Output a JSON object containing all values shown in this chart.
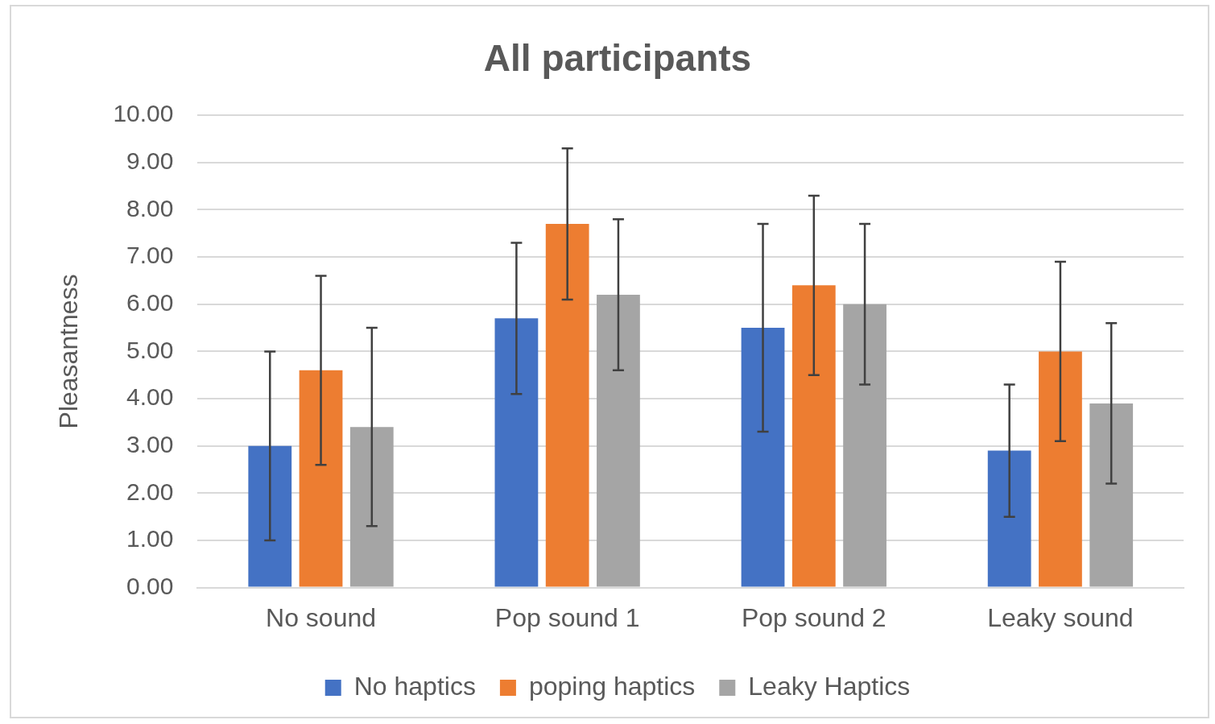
{
  "chart_data": {
    "type": "bar",
    "title": "All participants",
    "ylabel": "Pleasantness",
    "categories": [
      "No sound",
      "Pop sound 1",
      "Pop sound 2",
      "Leaky sound"
    ],
    "series": [
      {
        "name": "No haptics",
        "color": "#4472c4",
        "values": [
          3.0,
          5.7,
          5.5,
          2.9
        ],
        "errors": [
          2.0,
          1.6,
          2.2,
          1.4
        ]
      },
      {
        "name": "poping haptics",
        "color": "#ed7d31",
        "values": [
          4.6,
          7.7,
          6.4,
          5.0
        ],
        "errors": [
          2.0,
          1.6,
          1.9,
          1.9
        ]
      },
      {
        "name": "Leaky Haptics",
        "color": "#a5a5a5",
        "values": [
          3.4,
          6.2,
          6.0,
          3.9
        ],
        "errors": [
          2.1,
          1.6,
          1.7,
          1.7
        ]
      }
    ],
    "ylim": [
      0,
      10
    ],
    "yticks": [
      {
        "value": 0,
        "label": "0.00"
      },
      {
        "value": 1,
        "label": "1.00"
      },
      {
        "value": 2,
        "label": "2.00"
      },
      {
        "value": 3,
        "label": "3.00"
      },
      {
        "value": 4,
        "label": "4.00"
      },
      {
        "value": 5,
        "label": "5.00"
      },
      {
        "value": 6,
        "label": "6.00"
      },
      {
        "value": 7,
        "label": "7.00"
      },
      {
        "value": 8,
        "label": "8.00"
      },
      {
        "value": 9,
        "label": "9.00"
      },
      {
        "value": 10,
        "label": "10.00"
      }
    ],
    "grid": "y",
    "legend": "bottom"
  }
}
